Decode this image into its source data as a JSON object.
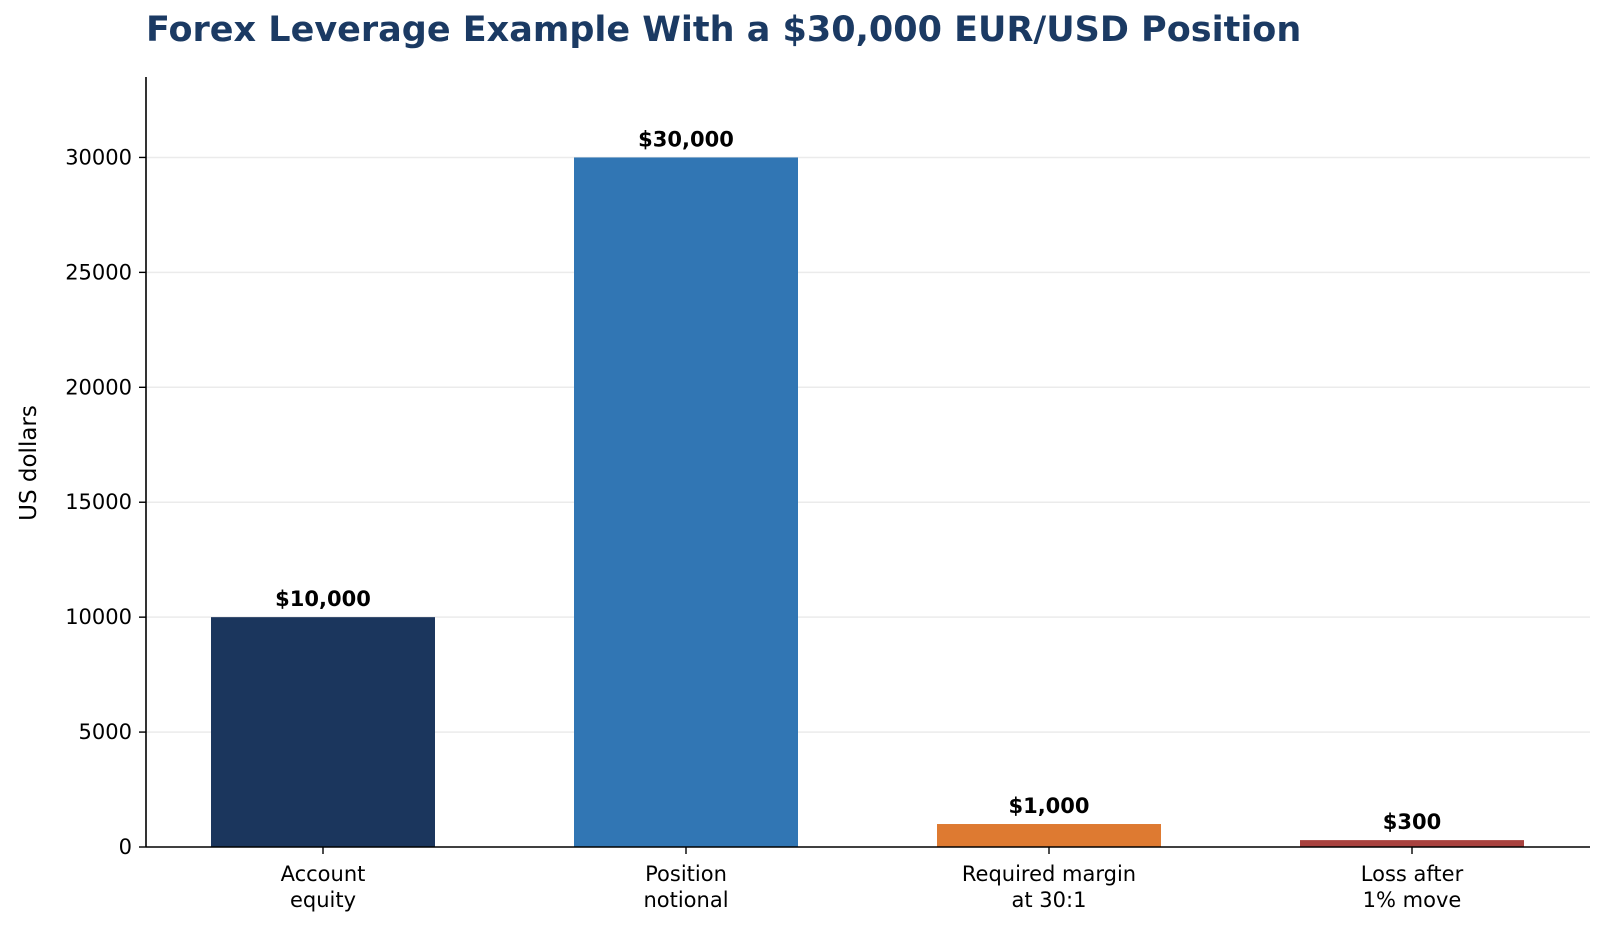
{
  "chart_data": {
    "type": "bar",
    "title": "Forex Leverage Example With a $30,000 EUR/USD Position",
    "xlabel": "",
    "ylabel": "US dollars",
    "categories": [
      [
        "Account",
        "equity"
      ],
      [
        "Position",
        "notional"
      ],
      [
        "Required margin",
        "at 30:1"
      ],
      [
        "Loss after",
        "1% move"
      ]
    ],
    "values": [
      10000,
      30000,
      1000,
      300
    ],
    "data_labels": [
      "$10,000",
      "$30,000",
      "$1,000",
      "$300"
    ],
    "colors": [
      "#1b365d",
      "#3176b4",
      "#de7a31",
      "#a8423f"
    ],
    "yticks": [
      0,
      5000,
      10000,
      15000,
      20000,
      25000,
      30000
    ],
    "ytick_labels": [
      "0",
      "5000",
      "10000",
      "15000",
      "20000",
      "25000",
      "30000"
    ],
    "ylim": [
      0,
      33500
    ],
    "grid": "horizontal",
    "legend": "none"
  }
}
